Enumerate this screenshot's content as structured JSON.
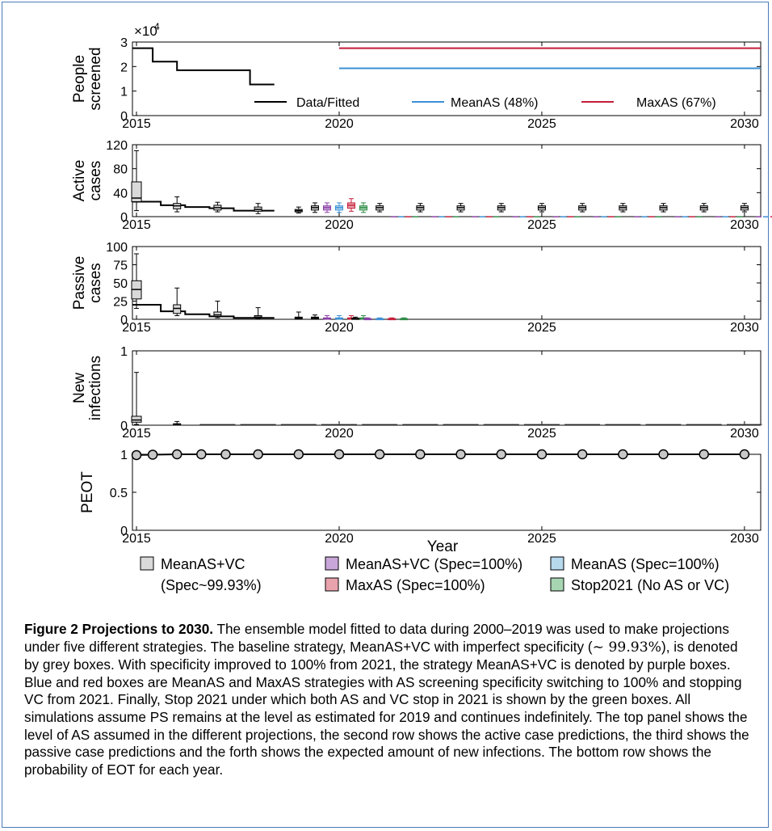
{
  "chart_data": {
    "type": "box",
    "xlabel": "Year",
    "xlim": [
      2014.9,
      2030.4
    ],
    "x_ticks": [
      2015,
      2020,
      2025,
      2030
    ],
    "panels": [
      {
        "id": "people-screened",
        "ylabel": [
          "People",
          "screened"
        ],
        "ylim": [
          0,
          3
        ],
        "yticks": [
          0,
          1,
          2,
          3
        ],
        "y_multiplier": "×10",
        "y_multiplier_exp": "4",
        "series": [
          {
            "name": "Data/Fitted",
            "color": "#000000",
            "kind": "step",
            "x": [
              2014.9,
              2015.4,
              2015.4,
              2016.0,
              2016.0,
              2017.8,
              2017.8,
              2018.4
            ],
            "y": [
              2.75,
              2.75,
              2.2,
              2.2,
              1.85,
              1.85,
              1.27,
              1.27
            ]
          },
          {
            "name": "MeanAS (48%)",
            "color": "#3b8fd6",
            "kind": "line",
            "x": [
              2020,
              2030.4
            ],
            "y": [
              1.93,
              1.93
            ]
          },
          {
            "name": "MaxAS (67%)",
            "color": "#c41e3a",
            "kind": "line",
            "x": [
              2020,
              2030.4
            ],
            "y": [
              2.75,
              2.75
            ]
          }
        ]
      },
      {
        "id": "active-cases",
        "ylabel": [
          "Active",
          "cases"
        ],
        "ylim": [
          0,
          120
        ],
        "yticks": [
          0,
          40,
          80,
          120
        ],
        "fitted": {
          "x": [
            2014.9,
            2015.6,
            2015.6,
            2016.2,
            2016.2,
            2016.8,
            2016.8,
            2017.4,
            2017.4,
            2018.0,
            2018.0,
            2018.4
          ],
          "y": [
            25,
            25,
            19,
            19,
            16,
            16,
            14,
            14,
            10,
            10,
            10,
            10
          ]
        },
        "boxes": [
          {
            "x": 2015.0,
            "series": "MeanAS+VC",
            "whisker": [
              10,
              110
            ],
            "box": [
              25,
              58
            ],
            "median": 31
          },
          {
            "x": 2016.0,
            "series": "MeanAS+VC",
            "whisker": [
              8,
              33
            ],
            "box": [
              13,
              22
            ],
            "median": 18
          },
          {
            "x": 2017.0,
            "series": "MeanAS+VC",
            "whisker": [
              8,
              24
            ],
            "box": [
              11,
              19
            ],
            "median": 15
          },
          {
            "x": 2018.0,
            "series": "MeanAS+VC",
            "whisker": [
              5,
              22
            ],
            "box": [
              9,
              16
            ],
            "median": 12
          },
          {
            "x": 2019.0,
            "series": "MeanAS+VC",
            "whisker": [
              6,
              16
            ],
            "box": [
              8,
              12
            ],
            "median": 10
          },
          {
            "x": 2020.0,
            "series": "MeanAS+VC",
            "whisker": [
              7,
              23
            ],
            "box": [
              11,
              18
            ],
            "median": 15
          },
          {
            "x": 2020.0,
            "series": "MeanAS+VC (Spec=100%)",
            "whisker": [
              7,
              23
            ],
            "box": [
              11,
              18
            ],
            "median": 15
          },
          {
            "x": 2020.0,
            "series": "MeanAS (Spec=100%)",
            "whisker": [
              7,
              23
            ],
            "box": [
              11,
              18
            ],
            "median": 15
          },
          {
            "x": 2020.0,
            "series": "MaxAS (Spec=100%)",
            "whisker": [
              9,
              30
            ],
            "box": [
              14,
              23
            ],
            "median": 19
          },
          {
            "x": 2020.0,
            "series": "Stop2021 (No AS or VC)",
            "whisker": [
              7,
              23
            ],
            "box": [
              11,
              18
            ],
            "median": 15
          },
          {
            "x": 2021.0,
            "series": "MeanAS+VC",
            "whisker": [
              8,
              22
            ],
            "box": [
              11,
              18
            ],
            "median": 15
          },
          {
            "x": 2022.0,
            "series": "MeanAS+VC",
            "whisker": [
              8,
              22
            ],
            "box": [
              11,
              18
            ],
            "median": 15
          },
          {
            "x": 2023.0,
            "series": "MeanAS+VC",
            "whisker": [
              8,
              22
            ],
            "box": [
              11,
              18
            ],
            "median": 15
          },
          {
            "x": 2024.0,
            "series": "MeanAS+VC",
            "whisker": [
              8,
              22
            ],
            "box": [
              11,
              18
            ],
            "median": 15
          },
          {
            "x": 2025.0,
            "series": "MeanAS+VC",
            "whisker": [
              8,
              22
            ],
            "box": [
              11,
              18
            ],
            "median": 15
          },
          {
            "x": 2026.0,
            "series": "MeanAS+VC",
            "whisker": [
              8,
              22
            ],
            "box": [
              11,
              18
            ],
            "median": 15
          },
          {
            "x": 2027.0,
            "series": "MeanAS+VC",
            "whisker": [
              8,
              22
            ],
            "box": [
              11,
              18
            ],
            "median": 15
          },
          {
            "x": 2028.0,
            "series": "MeanAS+VC",
            "whisker": [
              8,
              22
            ],
            "box": [
              11,
              18
            ],
            "median": 15
          },
          {
            "x": 2029.0,
            "series": "MeanAS+VC",
            "whisker": [
              8,
              22
            ],
            "box": [
              11,
              18
            ],
            "median": 15
          },
          {
            "x": 2030.0,
            "series": "MeanAS+VC",
            "whisker": [
              8,
              22
            ],
            "box": [
              11,
              18
            ],
            "median": 15
          }
        ],
        "other_strategies_after_2021": 0.5
      },
      {
        "id": "passive-cases",
        "ylabel": [
          "Passive",
          "cases"
        ],
        "ylim": [
          0,
          100
        ],
        "yticks": [
          0,
          25,
          50,
          75,
          100
        ],
        "fitted": {
          "x": [
            2014.9,
            2015.6,
            2015.6,
            2016.2,
            2016.2,
            2016.8,
            2016.8,
            2017.4,
            2017.4,
            2018.0,
            2018.0,
            2018.4
          ],
          "y": [
            20,
            20,
            11,
            11,
            7,
            7,
            4,
            4,
            2,
            2,
            2,
            2
          ]
        },
        "boxes": [
          {
            "x": 2015.0,
            "series": "MeanAS+VC",
            "whisker": [
              15,
              90
            ],
            "box": [
              28,
              53
            ],
            "median": 41
          },
          {
            "x": 2016.0,
            "series": "MeanAS+VC",
            "whisker": [
              5,
              43
            ],
            "box": [
              8,
              20
            ],
            "median": 15
          },
          {
            "x": 2017.0,
            "series": "MeanAS+VC",
            "whisker": [
              2,
              25
            ],
            "box": [
              4,
              10
            ],
            "median": 6
          },
          {
            "x": 2018.0,
            "series": "MeanAS+VC",
            "whisker": [
              1,
              16
            ],
            "box": [
              2,
              5
            ],
            "median": 3
          },
          {
            "x": 2019.0,
            "series": "MeanAS+VC",
            "whisker": [
              0,
              10
            ],
            "box": [
              1,
              3
            ],
            "median": 2
          },
          {
            "x": 2020.0,
            "series": "MeanAS+VC",
            "whisker": [
              0,
              6
            ],
            "box": [
              1,
              3
            ],
            "median": 2
          },
          {
            "x": 2020.0,
            "series": "MeanAS+VC (Spec=100%)",
            "whisker": [
              0,
              5
            ],
            "box": [
              1,
              2
            ],
            "median": 1
          },
          {
            "x": 2020.0,
            "series": "MeanAS (Spec=100%)",
            "whisker": [
              0,
              5
            ],
            "box": [
              1,
              2
            ],
            "median": 1
          },
          {
            "x": 2020.0,
            "series": "MaxAS (Spec=100%)",
            "whisker": [
              0,
              5
            ],
            "box": [
              1,
              2
            ],
            "median": 1
          },
          {
            "x": 2020.0,
            "series": "Stop2021 (No AS or VC)",
            "whisker": [
              0,
              5
            ],
            "box": [
              1,
              2
            ],
            "median": 1
          },
          {
            "x": 2021.0,
            "series": "MeanAS+VC",
            "whisker": [
              0,
              3
            ],
            "box": [
              0.5,
              1.5
            ],
            "median": 1
          },
          {
            "x": 2021.0,
            "series": "MeanAS+VC (Spec=100%)",
            "whisker": [
              0,
              2
            ],
            "box": [
              0.3,
              1
            ],
            "median": 0.6
          },
          {
            "x": 2021.0,
            "series": "MeanAS (Spec=100%)",
            "whisker": [
              0,
              2
            ],
            "box": [
              0.3,
              1
            ],
            "median": 0.6
          },
          {
            "x": 2021.0,
            "series": "MaxAS (Spec=100%)",
            "whisker": [
              0,
              2
            ],
            "box": [
              0.3,
              1
            ],
            "median": 0.6
          },
          {
            "x": 2021.0,
            "series": "Stop2021 (No AS or VC)",
            "whisker": [
              0,
              2
            ],
            "box": [
              0.3,
              1
            ],
            "median": 0.6
          }
        ]
      },
      {
        "id": "new-infections",
        "ylabel": [
          "New",
          "infections"
        ],
        "ylim": [
          0,
          1
        ],
        "yticks": [
          0,
          1
        ],
        "boxes": [
          {
            "x": 2015.0,
            "series": "MeanAS+VC",
            "whisker": [
              0.01,
              0.71
            ],
            "box": [
              0.04,
              0.12
            ],
            "median": 0.07
          },
          {
            "x": 2016.0,
            "series": "MeanAS+VC",
            "whisker": [
              0.0,
              0.05
            ],
            "box": [
              0.005,
              0.02
            ],
            "median": 0.01
          }
        ]
      },
      {
        "id": "peot",
        "ylabel": [
          "PEOT"
        ],
        "ylim": [
          0,
          1
        ],
        "yticks": [
          0,
          0.5,
          1
        ],
        "points": {
          "x": [
            2015.0,
            2015.4,
            2016.0,
            2016.6,
            2017.2,
            2018.0,
            2019.0,
            2020.0,
            2021.0,
            2022.0,
            2023.0,
            2024.0,
            2025.0,
            2026.0,
            2027.0,
            2028.0,
            2029.0,
            2030.0
          ],
          "y": [
            0.99,
            0.995,
            1,
            1,
            1,
            1,
            1,
            1,
            1,
            1,
            1,
            1,
            1,
            1,
            1,
            1,
            1,
            1
          ]
        }
      }
    ],
    "top_legend": [
      "Data/Fitted",
      "MeanAS (48%)",
      "MaxAS (67%)"
    ],
    "legend": [
      {
        "label": "MeanAS+VC",
        "label2": "(Spec~99.93%)",
        "color": "#d9d9d9"
      },
      {
        "label": "MeanAS+VC (Spec=100%)",
        "color": "#c9a6d9"
      },
      {
        "label": "MeanAS (Spec=100%)",
        "color": "#b6d9ee"
      },
      {
        "label": "MaxAS (Spec=100%)",
        "color": "#e8a3ad"
      },
      {
        "label": "Stop2021 (No AS or VC)",
        "color": "#a7d6b2"
      }
    ],
    "series_colors": {
      "MeanAS+VC": "#d9d9d9",
      "MeanAS+VC (Spec=100%)": "#c9a6d9",
      "MeanAS (Spec=100%)": "#b6d9ee",
      "MaxAS (Spec=100%)": "#e8a3ad",
      "Stop2021 (No AS or VC)": "#a7d6b2"
    },
    "series_edges": {
      "MeanAS+VC": "#000000",
      "MeanAS+VC (Spec=100%)": "#8b3fa6",
      "MeanAS (Spec=100%)": "#3b8fd6",
      "MaxAS (Spec=100%)": "#c41e3a",
      "Stop2021 (No AS or VC)": "#2e8b46"
    }
  },
  "caption": {
    "label": "Figure 2",
    "title": "Projections to 2030.",
    "text_1": "The ensemble model fitted to data during 2000–2019 was used to make projections under five different strategies. The baseline strategy, MeanAS+VC with imperfect specificity (",
    "math": "∼ 99.93%",
    "text_2": "), is denoted by grey boxes. With specificity improved to 100% from 2021, the strategy MeanAS+VC is denoted by purple boxes. Blue and red boxes are MeanAS and MaxAS strategies with AS screening specificity switching to 100% and stopping VC from 2021. Finally, Stop 2021 under which both AS and VC stop in 2021 is shown by the green boxes. All simulations assume PS remains at the level as estimated for 2019 and continues indefinitely. The top panel shows the level of AS assumed in the different projections, the second row shows the active case predictions, the third shows the passive case predictions and the forth shows the expected amount of new infections. The bottom row shows the probability of EOT for each year."
  }
}
